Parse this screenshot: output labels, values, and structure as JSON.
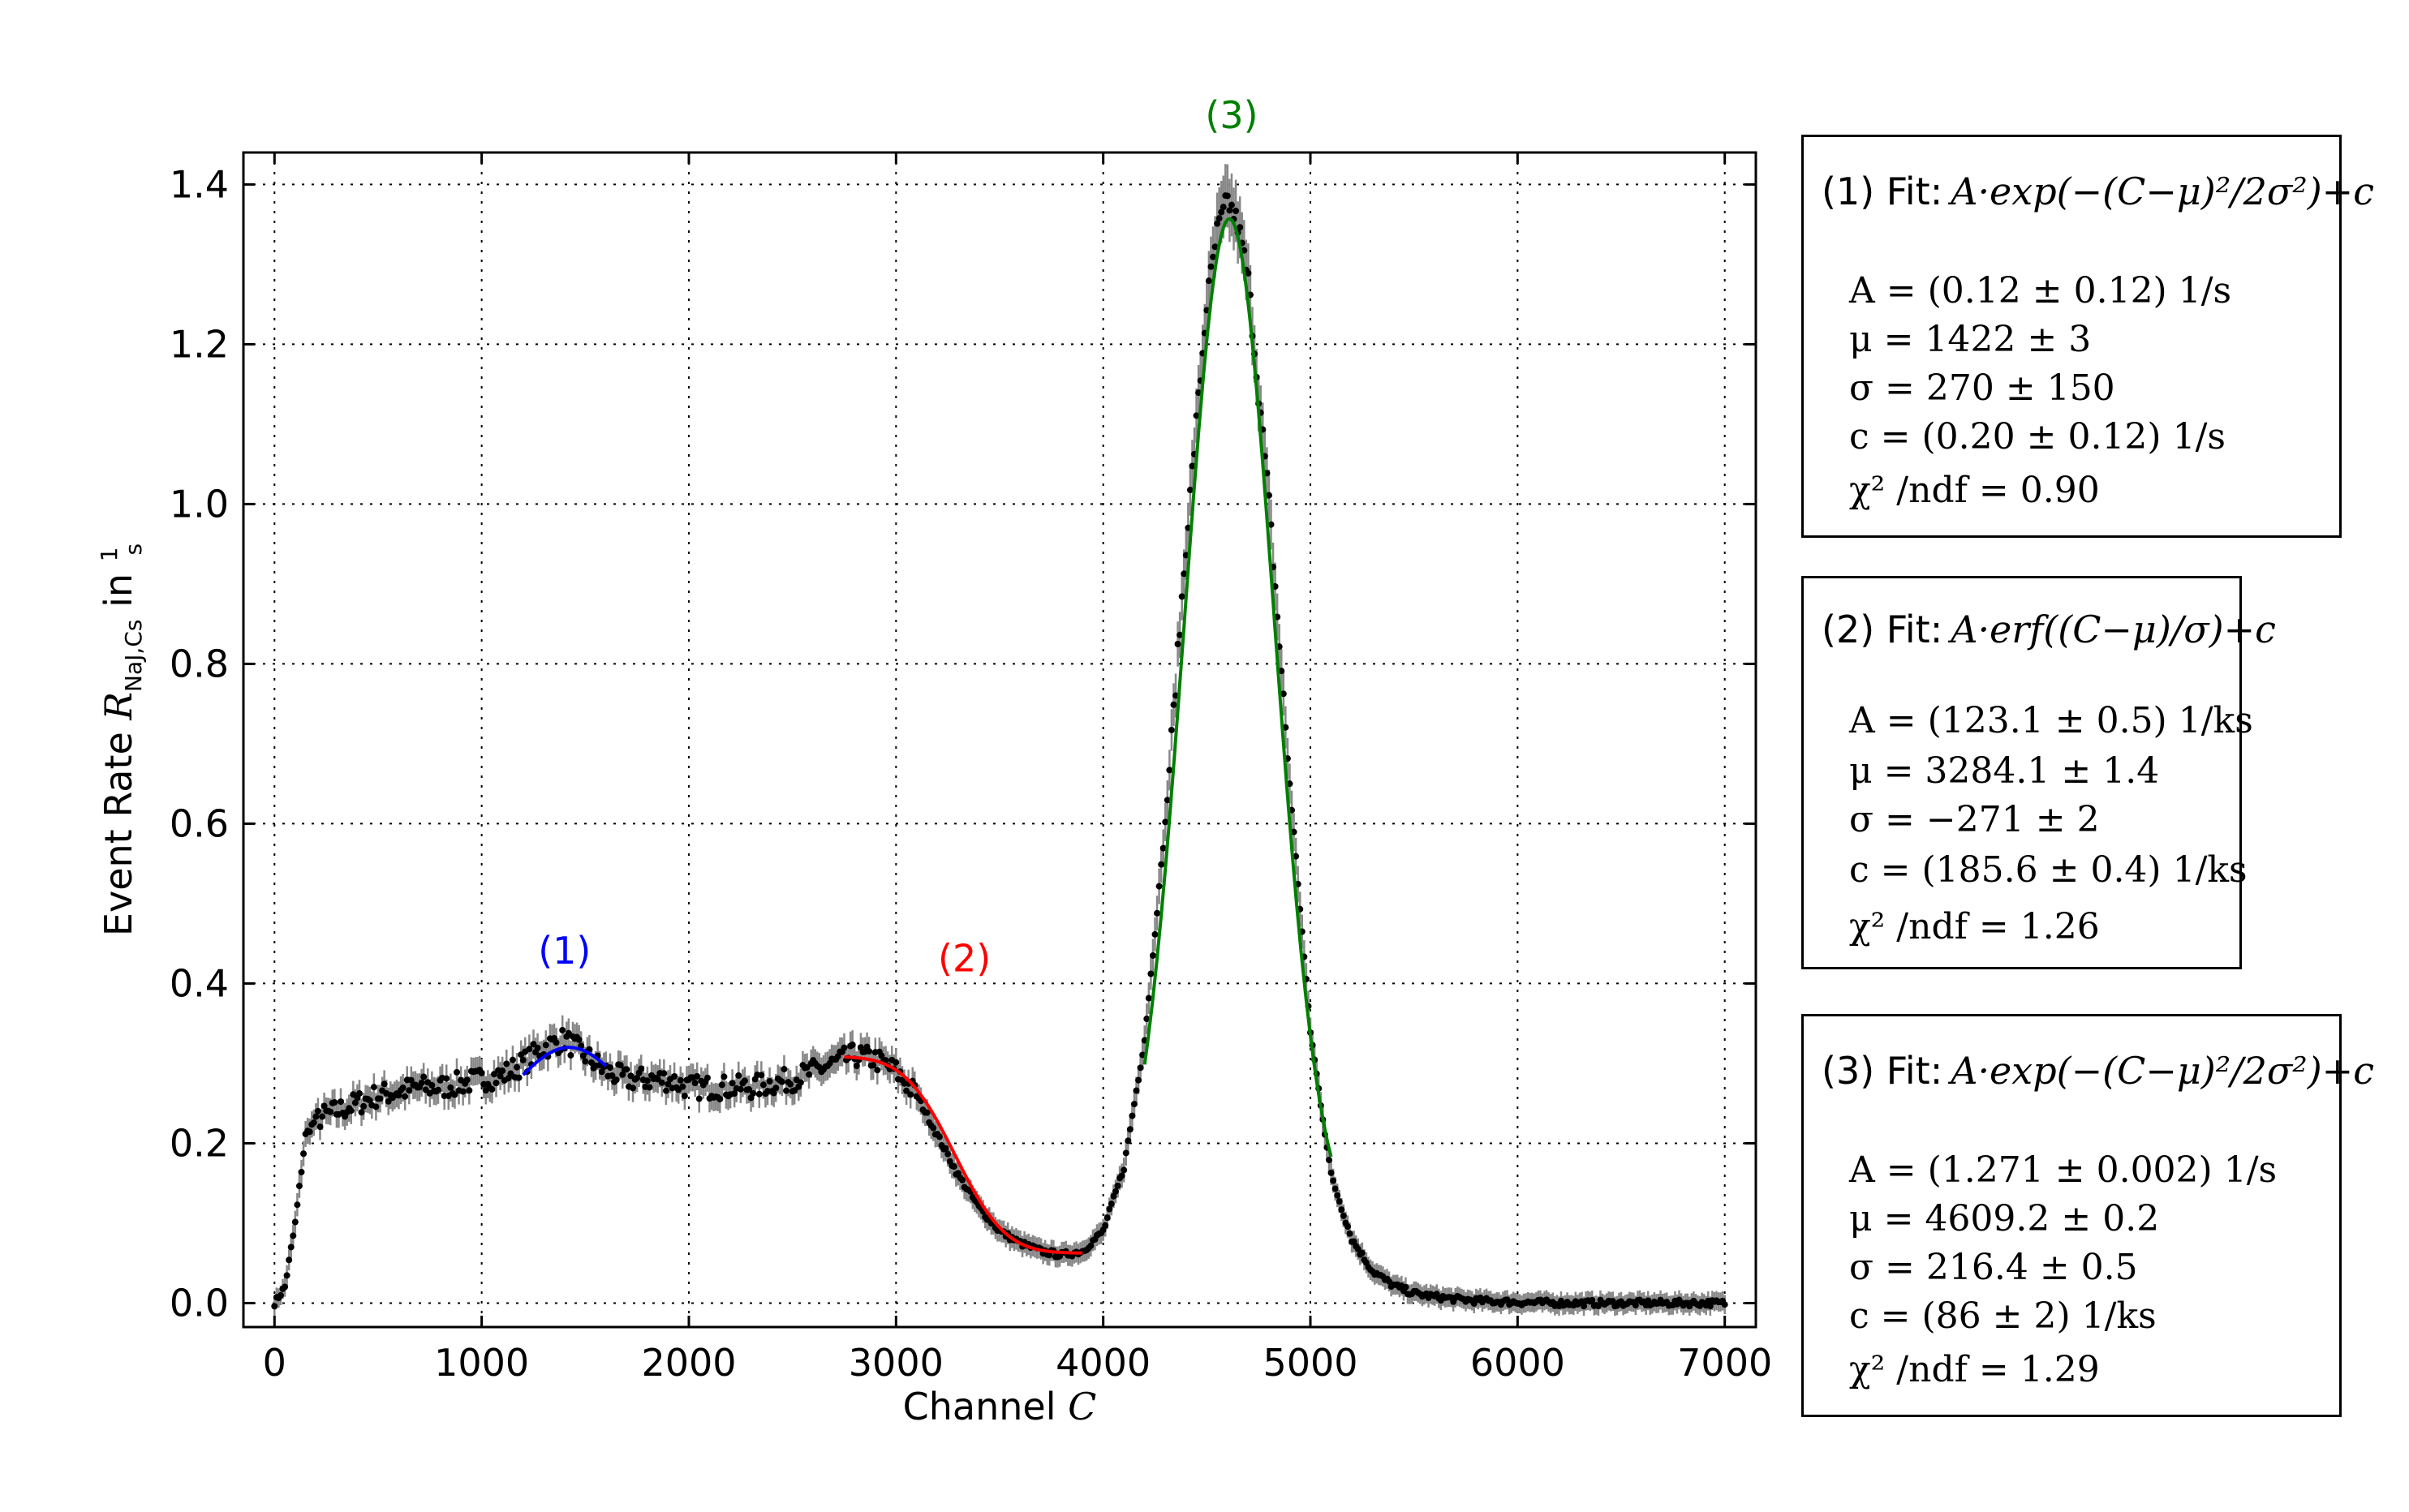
{
  "chart_data": {
    "type": "scatter",
    "xlabel": "Channel C",
    "ylabel": "Event Rate R_NaJ,Cs in 1/s",
    "xlim": [
      -150,
      7150
    ],
    "ylim": [
      -0.03,
      1.44
    ],
    "x_ticks": [
      0,
      1000,
      2000,
      3000,
      4000,
      5000,
      6000,
      7000
    ],
    "y_ticks": [
      0.0,
      0.2,
      0.4,
      0.6,
      0.8,
      1.0,
      1.2,
      1.4
    ],
    "x_tick_labels": [
      "0",
      "1000",
      "2000",
      "3000",
      "4000",
      "5000",
      "6000",
      "7000"
    ],
    "y_tick_labels": [
      "0.0",
      "0.2",
      "0.4",
      "0.6",
      "0.8",
      "1.0",
      "1.2",
      "1.4"
    ],
    "grid": true,
    "series": [
      {
        "color": "#000000",
        "error_color": "#888888",
        "x": [
          0,
          50,
          100,
          150,
          200,
          300,
          400,
          500,
          600,
          700,
          800,
          900,
          1000,
          1100,
          1200,
          1300,
          1400,
          1500,
          1600,
          1700,
          1800,
          1900,
          2000,
          2100,
          2200,
          2300,
          2400,
          2500,
          2600,
          2700,
          2800,
          2900,
          3000,
          3100,
          3200,
          3300,
          3400,
          3500,
          3600,
          3700,
          3800,
          3900,
          4000,
          4100,
          4200,
          4300,
          4400,
          4500,
          4550,
          4600,
          4650,
          4700,
          4800,
          4900,
          5000,
          5100,
          5200,
          5300,
          5400,
          5500,
          5600,
          5700,
          5800,
          6000,
          6200,
          6400,
          6600,
          6800,
          7000
        ],
        "y": [
          0.0,
          0.02,
          0.1,
          0.21,
          0.23,
          0.24,
          0.25,
          0.26,
          0.265,
          0.27,
          0.27,
          0.275,
          0.28,
          0.285,
          0.3,
          0.32,
          0.33,
          0.31,
          0.29,
          0.28,
          0.28,
          0.28,
          0.27,
          0.27,
          0.27,
          0.27,
          0.275,
          0.28,
          0.29,
          0.3,
          0.31,
          0.305,
          0.29,
          0.26,
          0.21,
          0.16,
          0.12,
          0.09,
          0.075,
          0.065,
          0.06,
          0.065,
          0.09,
          0.17,
          0.33,
          0.6,
          0.95,
          1.25,
          1.34,
          1.38,
          1.35,
          1.28,
          1.0,
          0.65,
          0.34,
          0.16,
          0.08,
          0.04,
          0.022,
          0.012,
          0.008,
          0.005,
          0.003,
          0.001,
          0.0,
          0.0,
          0.0,
          0.0,
          0.0
        ]
      }
    ],
    "fits": [
      {
        "name": "(1)",
        "color": "#0000ff",
        "function": "gauss",
        "A": 0.12,
        "mu": 1422,
        "sigma": 270,
        "c": 0.2,
        "x_range": [
          1200,
          1600
        ]
      },
      {
        "name": "(2)",
        "color": "#ff0000",
        "function": "erf",
        "A": 0.1231,
        "mu": 3284.1,
        "sigma": -271,
        "c": 0.1856,
        "x_range": [
          2750,
          3900
        ]
      },
      {
        "name": "(3)",
        "color": "#008000",
        "function": "gauss",
        "A": 1.271,
        "mu": 4609.2,
        "sigma": 216.4,
        "c": 0.086,
        "x_range": [
          4200,
          5100
        ]
      }
    ],
    "peak_labels": [
      {
        "text": "(1)",
        "color": "#0000ff",
        "x": 1400,
        "y": 0.425
      },
      {
        "text": "(2)",
        "color": "#ff0000",
        "x": 3330,
        "y": 0.415
      }
    ],
    "top_label": {
      "text": "(3)",
      "color": "#008000",
      "x": 4620
    }
  },
  "xlabel": {
    "text": "Channel ",
    "var": "C"
  },
  "ylabel": {
    "text": "Event Rate ",
    "var": "R",
    "sub": "NaJ,Cs",
    "after": " in ",
    "num": "1",
    "den": "s"
  },
  "fit_boxes": [
    {
      "title": "(1) Fit:",
      "formula": "A·exp(−(C−μ)²/2σ²)+c",
      "params": [
        "A = (0.12 ± 0.12) 1/s",
        "μ = 1422 ± 3",
        "σ = 270 ± 150",
        "c = (0.20 ± 0.12) 1/s",
        "χ² /ndf = 0.90"
      ]
    },
    {
      "title": "(2) Fit:",
      "formula": "A·erf((C−μ)/σ)+c",
      "params": [
        "A = (123.1 ± 0.5) 1/ks",
        "μ = 3284.1 ± 1.4",
        "σ = −271 ± 2",
        "c = (185.6 ± 0.4) 1/ks",
        "χ² /ndf = 1.26"
      ]
    },
    {
      "title": "(3) Fit:",
      "formula": "A·exp(−(C−μ)²/2σ²)+c",
      "params": [
        "A = (1.271 ± 0.002) 1/s",
        "μ = 4609.2 ± 0.2",
        "σ = 216.4 ± 0.5",
        "c = (86 ± 2) 1/ks",
        "χ² /ndf = 1.29"
      ]
    }
  ]
}
